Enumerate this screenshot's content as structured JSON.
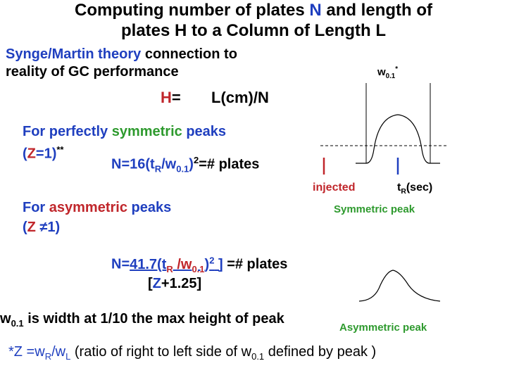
{
  "title": {
    "line1_a": "Computing number of plates ",
    "line1_N": "N",
    "line1_b": " and length of",
    "line2": "plates H to a Column of Length L"
  },
  "theory": {
    "name": "Synge/Martin theory",
    "rest": " connection to",
    "line2": "reality of GC performance"
  },
  "h_eq": {
    "H": "H",
    "eq": "=",
    "rhs": "L(cm)/N"
  },
  "symmetric": {
    "line1_a": "For perfectly ",
    "line1_b": "symmetric",
    "line1_c": " peaks",
    "line2_a": "(",
    "line2_Z": "Z",
    "line2_b": "=1)",
    "line2_sup": "**"
  },
  "eq1": {
    "a": "N=16(t",
    "sub1": "R",
    "b": "/w",
    "sub2": "0.1",
    "c": ")",
    "sup": "2",
    "d": "=# plates"
  },
  "asymmetric": {
    "line1_a": "For ",
    "line1_b": "asymmetric",
    "line1_c": " peaks",
    "line2_a": "(",
    "line2_Z": "Z",
    "line2_b": " ≠1)"
  },
  "eq2": {
    "a": "N=",
    "b": "41.7(t",
    "sub1": "R",
    "c": " /w",
    "sub2": "0.1",
    "d": ")",
    "sup": "2",
    "e": " ]",
    "f": " =# plates",
    "den_a": "[",
    "den_Z": "Z",
    "den_b": "+1.25]"
  },
  "diagram": {
    "w_label": "w",
    "w_sub": "0.1",
    "w_sup": "*",
    "injected": "injected",
    "tr_label": "t",
    "tr_sub": "R",
    "tr_unit": "(sec)",
    "symmetric_peak": "Symmetric peak",
    "asymmetric_peak": "Asymmetric peak"
  },
  "definition": {
    "w": "w",
    "sub": "0.1",
    "rest": " is width at 1/10 the max height of peak"
  },
  "footnote": {
    "a": "*Z =w",
    "sub1": "R",
    "b": "/w",
    "sub2": "L",
    "c": "  (ratio of right to left side of w",
    "sub3": "0.1",
    "d": " defined by peak )"
  },
  "colors": {
    "blue": "#1f3fbf",
    "green": "#2e9a2e",
    "red": "#c0262b"
  }
}
